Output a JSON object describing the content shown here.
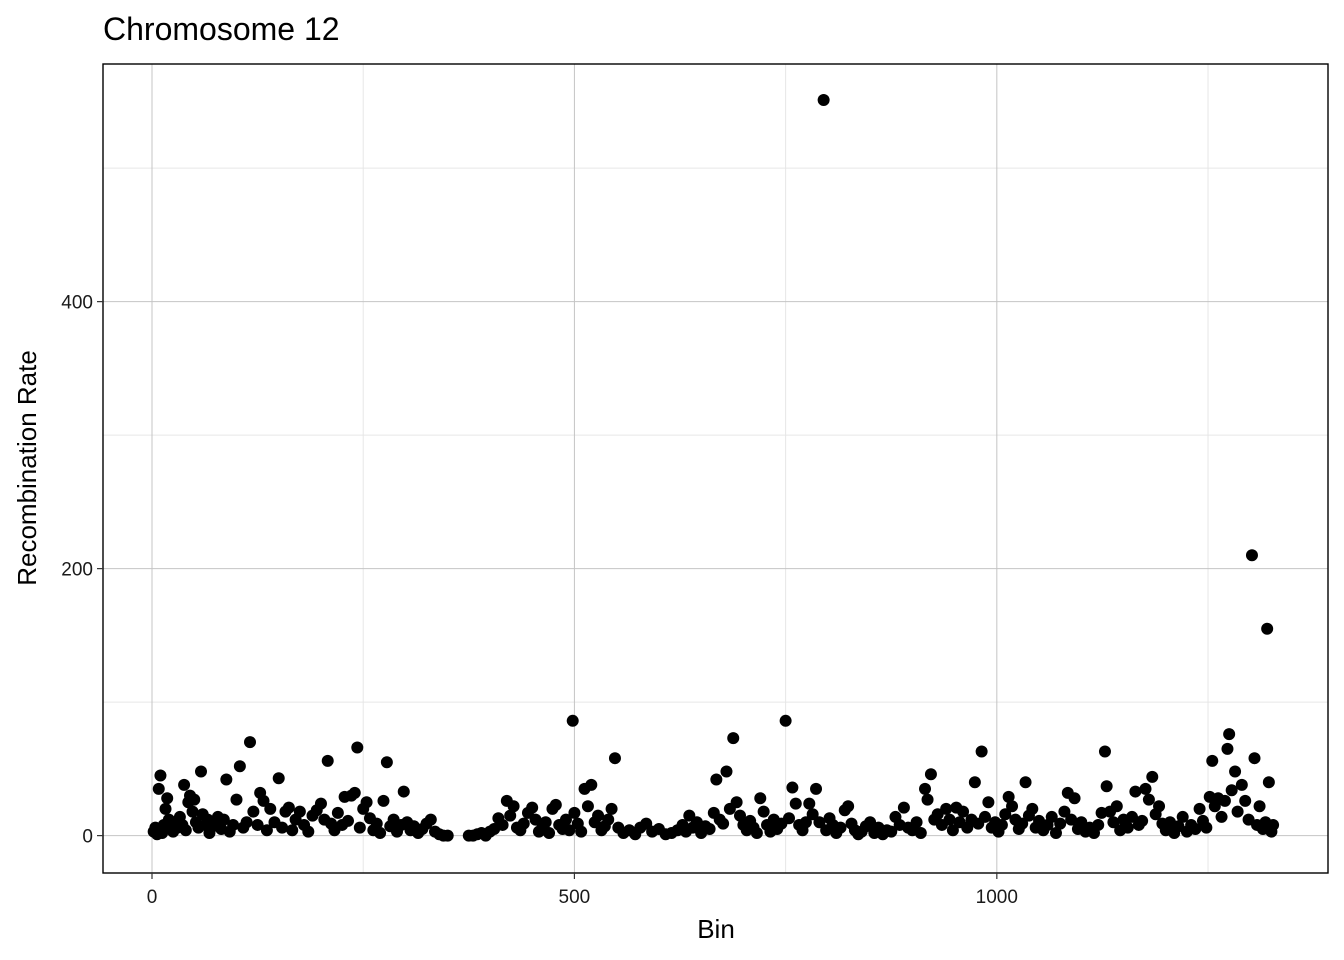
{
  "chart_data": {
    "type": "scatter",
    "title": "Chromosome 12",
    "xlabel": "Bin",
    "ylabel": "Recombination Rate",
    "xlim": [
      -58,
      1392
    ],
    "ylim": [
      -28,
      578
    ],
    "x_ticks": [
      0,
      500,
      1000
    ],
    "y_ticks": [
      0,
      200,
      400
    ],
    "x_tick_labels": [
      "0",
      "500",
      "1000"
    ],
    "y_tick_labels": [
      "0",
      "200",
      "400"
    ],
    "x_minor_ticks": [
      250,
      750,
      1250
    ],
    "y_minor_ticks": [
      100,
      300,
      500
    ],
    "grid": true,
    "legend": "none",
    "point_color": "#000000",
    "series": [
      {
        "values": [
          [
            2,
            3
          ],
          [
            4,
            6
          ],
          [
            6,
            1
          ],
          [
            8,
            35
          ],
          [
            10,
            45
          ],
          [
            12,
            2
          ],
          [
            14,
            8
          ],
          [
            16,
            20
          ],
          [
            18,
            28
          ],
          [
            20,
            12
          ],
          [
            22,
            5
          ],
          [
            25,
            3
          ],
          [
            28,
            10
          ],
          [
            30,
            6
          ],
          [
            33,
            14
          ],
          [
            36,
            8
          ],
          [
            38,
            38
          ],
          [
            40,
            4
          ],
          [
            43,
            25
          ],
          [
            45,
            30
          ],
          [
            48,
            18
          ],
          [
            50,
            27
          ],
          [
            52,
            10
          ],
          [
            55,
            6
          ],
          [
            58,
            48
          ],
          [
            60,
            16
          ],
          [
            63,
            8
          ],
          [
            66,
            12
          ],
          [
            68,
            2
          ],
          [
            70,
            6
          ],
          [
            74,
            9
          ],
          [
            78,
            14
          ],
          [
            82,
            5
          ],
          [
            85,
            12
          ],
          [
            88,
            42
          ],
          [
            92,
            3
          ],
          [
            96,
            8
          ],
          [
            100,
            27
          ],
          [
            104,
            52
          ],
          [
            108,
            6
          ],
          [
            112,
            10
          ],
          [
            116,
            70
          ],
          [
            120,
            18
          ],
          [
            125,
            8
          ],
          [
            128,
            32
          ],
          [
            132,
            26
          ],
          [
            136,
            4
          ],
          [
            140,
            20
          ],
          [
            145,
            10
          ],
          [
            150,
            43
          ],
          [
            154,
            6
          ],
          [
            158,
            18
          ],
          [
            162,
            21
          ],
          [
            166,
            4
          ],
          [
            170,
            12
          ],
          [
            175,
            18
          ],
          [
            180,
            8
          ],
          [
            185,
            3
          ],
          [
            190,
            15
          ],
          [
            195,
            19
          ],
          [
            200,
            24
          ],
          [
            204,
            12
          ],
          [
            208,
            56
          ],
          [
            212,
            9
          ],
          [
            216,
            4
          ],
          [
            220,
            17
          ],
          [
            225,
            8
          ],
          [
            228,
            29
          ],
          [
            232,
            11
          ],
          [
            236,
            30
          ],
          [
            240,
            32
          ],
          [
            243,
            66
          ],
          [
            246,
            6
          ],
          [
            250,
            20
          ],
          [
            254,
            25
          ],
          [
            258,
            13
          ],
          [
            262,
            4
          ],
          [
            266,
            9
          ],
          [
            270,
            2
          ],
          [
            274,
            26
          ],
          [
            278,
            55
          ],
          [
            282,
            7
          ],
          [
            286,
            12
          ],
          [
            290,
            3
          ],
          [
            295,
            8
          ],
          [
            298,
            33
          ],
          [
            302,
            10
          ],
          [
            306,
            4
          ],
          [
            310,
            7
          ],
          [
            315,
            2
          ],
          [
            320,
            5
          ],
          [
            325,
            9
          ],
          [
            330,
            12
          ],
          [
            335,
            3
          ],
          [
            340,
            1
          ],
          [
            345,
            0
          ],
          [
            350,
            0
          ],
          [
            375,
            0
          ],
          [
            380,
            0
          ],
          [
            385,
            1
          ],
          [
            390,
            2
          ],
          [
            395,
            0
          ],
          [
            400,
            3
          ],
          [
            405,
            5
          ],
          [
            410,
            13
          ],
          [
            415,
            8
          ],
          [
            420,
            26
          ],
          [
            424,
            15
          ],
          [
            428,
            22
          ],
          [
            432,
            6
          ],
          [
            436,
            4
          ],
          [
            440,
            9
          ],
          [
            445,
            17
          ],
          [
            450,
            21
          ],
          [
            454,
            12
          ],
          [
            458,
            3
          ],
          [
            462,
            6
          ],
          [
            466,
            10
          ],
          [
            470,
            2
          ],
          [
            474,
            20
          ],
          [
            478,
            23
          ],
          [
            482,
            8
          ],
          [
            486,
            5
          ],
          [
            490,
            12
          ],
          [
            494,
            4
          ],
          [
            498,
            86
          ],
          [
            500,
            17
          ],
          [
            504,
            9
          ],
          [
            508,
            3
          ],
          [
            512,
            35
          ],
          [
            516,
            22
          ],
          [
            520,
            38
          ],
          [
            524,
            10
          ],
          [
            528,
            15
          ],
          [
            532,
            4
          ],
          [
            536,
            7
          ],
          [
            540,
            12
          ],
          [
            544,
            20
          ],
          [
            548,
            58
          ],
          [
            552,
            6
          ],
          [
            558,
            2
          ],
          [
            565,
            4
          ],
          [
            572,
            1
          ],
          [
            578,
            6
          ],
          [
            585,
            9
          ],
          [
            592,
            3
          ],
          [
            600,
            5
          ],
          [
            608,
            1
          ],
          [
            615,
            2
          ],
          [
            622,
            4
          ],
          [
            628,
            8
          ],
          [
            632,
            3
          ],
          [
            636,
            15
          ],
          [
            640,
            6
          ],
          [
            645,
            10
          ],
          [
            650,
            2
          ],
          [
            655,
            7
          ],
          [
            660,
            5
          ],
          [
            665,
            17
          ],
          [
            668,
            42
          ],
          [
            672,
            12
          ],
          [
            676,
            9
          ],
          [
            680,
            48
          ],
          [
            684,
            20
          ],
          [
            688,
            73
          ],
          [
            692,
            25
          ],
          [
            696,
            15
          ],
          [
            700,
            8
          ],
          [
            704,
            4
          ],
          [
            708,
            11
          ],
          [
            712,
            6
          ],
          [
            716,
            2
          ],
          [
            720,
            28
          ],
          [
            724,
            18
          ],
          [
            728,
            8
          ],
          [
            732,
            3
          ],
          [
            736,
            12
          ],
          [
            740,
            5
          ],
          [
            745,
            9
          ],
          [
            750,
            86
          ],
          [
            754,
            13
          ],
          [
            758,
            36
          ],
          [
            762,
            24
          ],
          [
            766,
            8
          ],
          [
            770,
            4
          ],
          [
            774,
            10
          ],
          [
            778,
            24
          ],
          [
            782,
            16
          ],
          [
            786,
            35
          ],
          [
            790,
            10
          ],
          [
            795,
            551
          ],
          [
            798,
            4
          ],
          [
            802,
            13
          ],
          [
            806,
            8
          ],
          [
            810,
            2
          ],
          [
            815,
            6
          ],
          [
            820,
            19
          ],
          [
            824,
            22
          ],
          [
            828,
            9
          ],
          [
            832,
            4
          ],
          [
            836,
            1
          ],
          [
            840,
            3
          ],
          [
            845,
            7
          ],
          [
            850,
            10
          ],
          [
            855,
            2
          ],
          [
            860,
            6
          ],
          [
            865,
            1
          ],
          [
            870,
            4
          ],
          [
            875,
            3
          ],
          [
            880,
            14
          ],
          [
            885,
            8
          ],
          [
            890,
            21
          ],
          [
            895,
            6
          ],
          [
            900,
            4
          ],
          [
            905,
            10
          ],
          [
            910,
            2
          ],
          [
            915,
            35
          ],
          [
            918,
            27
          ],
          [
            922,
            46
          ],
          [
            926,
            12
          ],
          [
            930,
            16
          ],
          [
            935,
            8
          ],
          [
            940,
            20
          ],
          [
            944,
            12
          ],
          [
            948,
            4
          ],
          [
            952,
            21
          ],
          [
            956,
            10
          ],
          [
            960,
            18
          ],
          [
            965,
            6
          ],
          [
            970,
            12
          ],
          [
            974,
            40
          ],
          [
            978,
            9
          ],
          [
            982,
            63
          ],
          [
            986,
            14
          ],
          [
            990,
            25
          ],
          [
            994,
            6
          ],
          [
            998,
            10
          ],
          [
            1002,
            3
          ],
          [
            1006,
            8
          ],
          [
            1010,
            16
          ],
          [
            1014,
            29
          ],
          [
            1018,
            22
          ],
          [
            1022,
            12
          ],
          [
            1026,
            5
          ],
          [
            1030,
            9
          ],
          [
            1034,
            40
          ],
          [
            1038,
            15
          ],
          [
            1042,
            20
          ],
          [
            1046,
            6
          ],
          [
            1050,
            11
          ],
          [
            1055,
            4
          ],
          [
            1060,
            8
          ],
          [
            1065,
            14
          ],
          [
            1070,
            2
          ],
          [
            1075,
            9
          ],
          [
            1080,
            18
          ],
          [
            1084,
            32
          ],
          [
            1088,
            12
          ],
          [
            1092,
            28
          ],
          [
            1096,
            5
          ],
          [
            1100,
            10
          ],
          [
            1105,
            3
          ],
          [
            1110,
            6
          ],
          [
            1115,
            2
          ],
          [
            1120,
            8
          ],
          [
            1124,
            17
          ],
          [
            1128,
            63
          ],
          [
            1130,
            37
          ],
          [
            1134,
            18
          ],
          [
            1138,
            10
          ],
          [
            1142,
            22
          ],
          [
            1146,
            4
          ],
          [
            1150,
            12
          ],
          [
            1155,
            6
          ],
          [
            1160,
            14
          ],
          [
            1164,
            33
          ],
          [
            1168,
            8
          ],
          [
            1172,
            11
          ],
          [
            1176,
            35
          ],
          [
            1180,
            27
          ],
          [
            1184,
            44
          ],
          [
            1188,
            16
          ],
          [
            1192,
            22
          ],
          [
            1196,
            9
          ],
          [
            1200,
            4
          ],
          [
            1205,
            10
          ],
          [
            1210,
            2
          ],
          [
            1215,
            7
          ],
          [
            1220,
            14
          ],
          [
            1225,
            3
          ],
          [
            1230,
            8
          ],
          [
            1235,
            5
          ],
          [
            1240,
            20
          ],
          [
            1244,
            11
          ],
          [
            1248,
            6
          ],
          [
            1252,
            29
          ],
          [
            1255,
            56
          ],
          [
            1258,
            22
          ],
          [
            1262,
            28
          ],
          [
            1266,
            14
          ],
          [
            1270,
            26
          ],
          [
            1273,
            65
          ],
          [
            1275,
            76
          ],
          [
            1278,
            34
          ],
          [
            1282,
            48
          ],
          [
            1285,
            18
          ],
          [
            1290,
            38
          ],
          [
            1294,
            26
          ],
          [
            1298,
            12
          ],
          [
            1302,
            210
          ],
          [
            1305,
            58
          ],
          [
            1308,
            8
          ],
          [
            1311,
            22
          ],
          [
            1315,
            5
          ],
          [
            1318,
            10
          ],
          [
            1320,
            155
          ],
          [
            1322,
            40
          ],
          [
            1325,
            3
          ],
          [
            1327,
            8
          ]
        ]
      }
    ]
  }
}
